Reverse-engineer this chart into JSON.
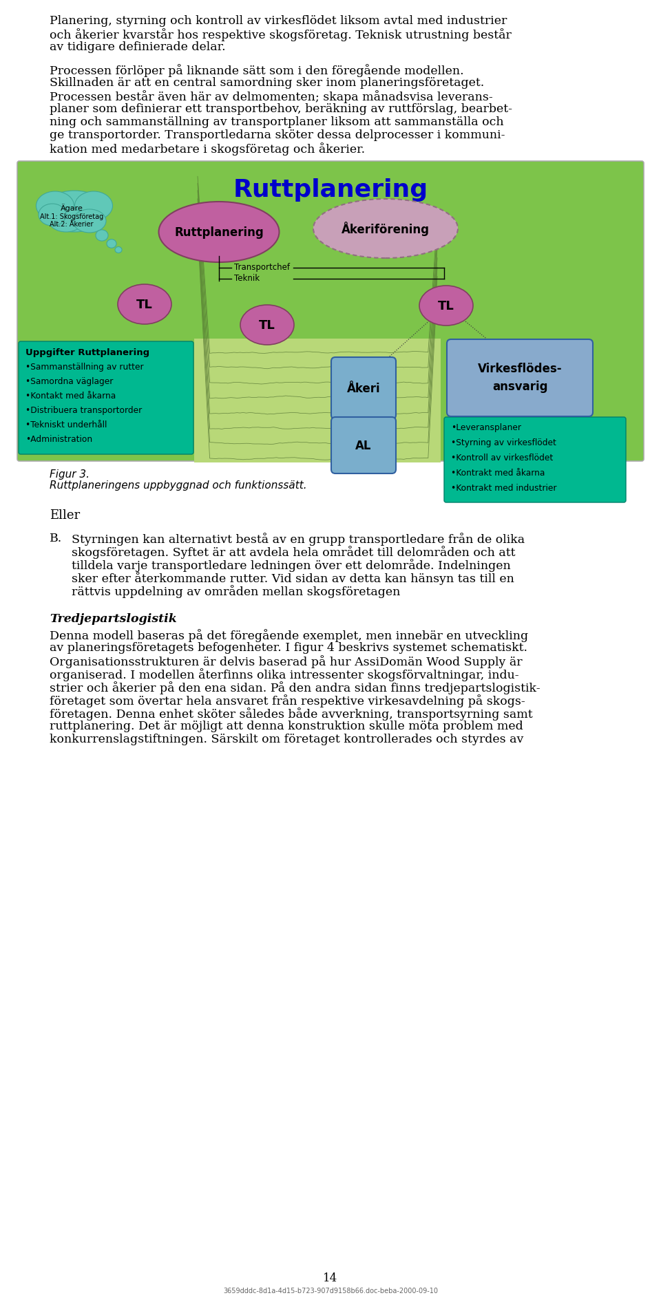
{
  "page_bg": "#ffffff",
  "para1_lines": [
    "Planering, styrning och kontroll av virkesflödet liksom avtal med industrier",
    "och åkerier kvarstår hos respektive skogsföretag. Teknisk utrustning består",
    "av tidigare definierade delar."
  ],
  "para2_lines": [
    "Processen förlöper på liknande sätt som i den föregående modellen.",
    "Skillnaden är att en central samordning sker inom planeringsföretaget.",
    "Processen består även här av delmomenten; skapa månadsvisa leverans-",
    "planer som definierar ett transportbehov, beräkning av ruttförslag, bearbet-",
    "ning och sammanställning av transportplaner liksom att sammanställa och",
    "ge transportorder. Transportledarna sköter dessa delprocesser i kommuni-",
    "kation med medarbetare i skogsföretag och åkerier."
  ],
  "diagram_title": "Ruttplanering",
  "fig_caption_1": "Figur 3.",
  "fig_caption_2": "Ruttplaneringens uppbyggnad och funktionssätt.",
  "eller_text": "Eller",
  "para_b_label": "B.",
  "para_b_lines": [
    "Styrningen kan alternativt bestå av en grupp transportledare från de olika",
    "skogsföretagen. Syftet är att avdela hela området till delområden och att",
    "tilldela varje transportledare ledningen över ett delområde. Indelningen",
    "sker efter återkommande rutter. Vid sidan av detta kan hänsyn tas till en",
    "rättvis uppdelning av områden mellan skogsföretagen"
  ],
  "tredje_title": "Tredjepartslogistik",
  "tredje_para_lines": [
    "Denna modell baseras på det föregående exemplet, men innebär en utveckling",
    "av planeringsföretagets befogenheter. I figur 4 beskrivs systemet schematiskt.",
    "Organisationsstrukturen är delvis baserad på hur AssiDomän Wood Supply är",
    "organiserad. I modellen återfinns olika intressenter skogsförvaltningar, indu-",
    "strier och åkerier på den ena sidan. På den andra sidan finns tredjepartslogistik-",
    "företaget som övertar hela ansvaret från respektive virkesavdelning på skogs-",
    "företagen. Denna enhet sköter således både avverkning, transportsyrning samt",
    "ruttplanering. Det är möjligt att denna konstruktion skulle möta problem med",
    "konkurrenslagstiftningen. Särskilt om företaget kontrollerades och styrdes av"
  ],
  "page_number": "14",
  "footer_text": "3659dddc-8d1a-4d15-b723-907d9158b66.doc-beba-2000-09-10",
  "left_box_lines": [
    "Uppgifter Ruttplanering",
    "•Sammanställning av rutter",
    "•Samordna väglager",
    "•Kontakt med åkarna",
    "•Distribuera transportorder",
    "•Tekniskt underhåll",
    "•Administration"
  ],
  "right_box_lines": [
    "•Leveransplaner",
    "•Styrning av virkesflödet",
    "•Kontroll av virkesflödet",
    "•Kontrakt med åkarna",
    "•Kontrakt med industrier"
  ],
  "cloud_lines": [
    "Ägare",
    "Alt.1: Skogsföretag",
    "Alt.2: Åkerier"
  ],
  "diagram_bg": "#7dc44a",
  "cloud_fill": "#60c8b8",
  "ellipse_left_fill": "#c060a0",
  "ellipse_right_fill": "#c8a0b8",
  "tl_fill": "#c060a0",
  "box_teal_fill": "#00b890",
  "akeri_fill": "#7aaecc",
  "virkes_fill": "#88aacc",
  "title_color": "#0000cc",
  "map_bg": "#b8d878"
}
